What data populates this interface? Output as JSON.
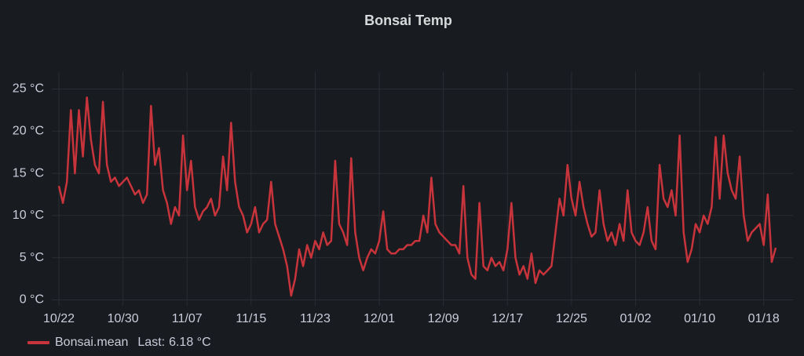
{
  "chart_data": {
    "type": "line",
    "title": "Bonsai Temp",
    "categories": [
      "10/22",
      null,
      null,
      null,
      null,
      null,
      null,
      null,
      null,
      null,
      null,
      null,
      null,
      null,
      null,
      null,
      "10/30",
      null,
      null,
      null,
      null,
      null,
      null,
      null,
      null,
      null,
      null,
      null,
      null,
      null,
      null,
      null,
      "11/07",
      null,
      null,
      null,
      null,
      null,
      null,
      null,
      null,
      null,
      null,
      null,
      null,
      null,
      null,
      null,
      "11/15",
      null,
      null,
      null,
      null,
      null,
      null,
      null,
      null,
      null,
      null,
      null,
      null,
      null,
      null,
      null,
      "11/23",
      null,
      null,
      null,
      null,
      null,
      null,
      null,
      null,
      null,
      null,
      null,
      null,
      null,
      null,
      null,
      "12/01",
      null,
      null,
      null,
      null,
      null,
      null,
      null,
      null,
      null,
      null,
      null,
      null,
      null,
      null,
      null,
      "12/09",
      null,
      null,
      null,
      null,
      null,
      null,
      null,
      null,
      null,
      null,
      null,
      null,
      null,
      null,
      null,
      "12/17",
      null,
      null,
      null,
      null,
      null,
      null,
      null,
      null,
      null,
      null,
      null,
      null,
      null,
      null,
      null,
      "12/25",
      null,
      null,
      null,
      null,
      null,
      null,
      null,
      null,
      null,
      null,
      null,
      null,
      null,
      null,
      null,
      "01/02",
      null,
      null,
      null,
      null,
      null,
      null,
      null,
      null,
      null,
      null,
      null,
      null,
      null,
      null,
      null,
      "01/10",
      null,
      null,
      null,
      null,
      null,
      null,
      null,
      null,
      null,
      null,
      null,
      null,
      null,
      null,
      null,
      "01/18",
      null,
      null,
      null
    ],
    "series": [
      {
        "name": "Bonsai.mean",
        "color": "#c8343b",
        "values": [
          13.5,
          11.5,
          14,
          22.5,
          15,
          22.5,
          17,
          24,
          19,
          16,
          15,
          23.5,
          16,
          14,
          14.5,
          13.5,
          14,
          14.5,
          13.5,
          12.5,
          13,
          11.5,
          12.5,
          23,
          16,
          18,
          13,
          11.5,
          9,
          11,
          10,
          19.5,
          13,
          16.5,
          11,
          9.5,
          10.5,
          11,
          12,
          10,
          11,
          17,
          13,
          21,
          14,
          11,
          10,
          8,
          9,
          11,
          8,
          9,
          9.5,
          14,
          9,
          7.5,
          6,
          4,
          0.5,
          2.5,
          6,
          4,
          6.5,
          5,
          7,
          6,
          8,
          6.5,
          7,
          16.5,
          9,
          8,
          6.5,
          16.8,
          8,
          5,
          3.5,
          5,
          6,
          5.5,
          7,
          10.5,
          6,
          5.5,
          5.5,
          6,
          6,
          6.5,
          6.5,
          7,
          7,
          10,
          8,
          14.5,
          9,
          8,
          7.5,
          7,
          6.5,
          6.5,
          5.5,
          13.5,
          5,
          3,
          2.5,
          11.5,
          4,
          3.5,
          5,
          4,
          4.5,
          3.5,
          6,
          11.5,
          5,
          3,
          4,
          2.5,
          5.5,
          2,
          3.5,
          3,
          3.5,
          4,
          8,
          12,
          10,
          16,
          12,
          10,
          14,
          11,
          9,
          7.5,
          8,
          13,
          9,
          7,
          8,
          6.5,
          9,
          7,
          13,
          8,
          7,
          6.5,
          8,
          11,
          7,
          6,
          16,
          12,
          11,
          13,
          10,
          19.5,
          8,
          4.5,
          6,
          9,
          8,
          10,
          9,
          11,
          19.3,
          12,
          19.5,
          15,
          13,
          12,
          17,
          10,
          7,
          8,
          8.5,
          9,
          6.5,
          12.5,
          4.5,
          6.18
        ],
        "last": {
          "label": "Last:",
          "value": 6.18,
          "value_label": "6.18 °C"
        }
      }
    ],
    "ylim": [
      -0.7,
      27
    ],
    "yticks": [
      {
        "value": 0,
        "label": "0 °C"
      },
      {
        "value": 5,
        "label": "5 °C"
      },
      {
        "value": 10,
        "label": "10 °C"
      },
      {
        "value": 15,
        "label": "15 °C"
      },
      {
        "value": 20,
        "label": "20 °C"
      },
      {
        "value": 25,
        "label": "25 °C"
      }
    ],
    "grid": true
  }
}
